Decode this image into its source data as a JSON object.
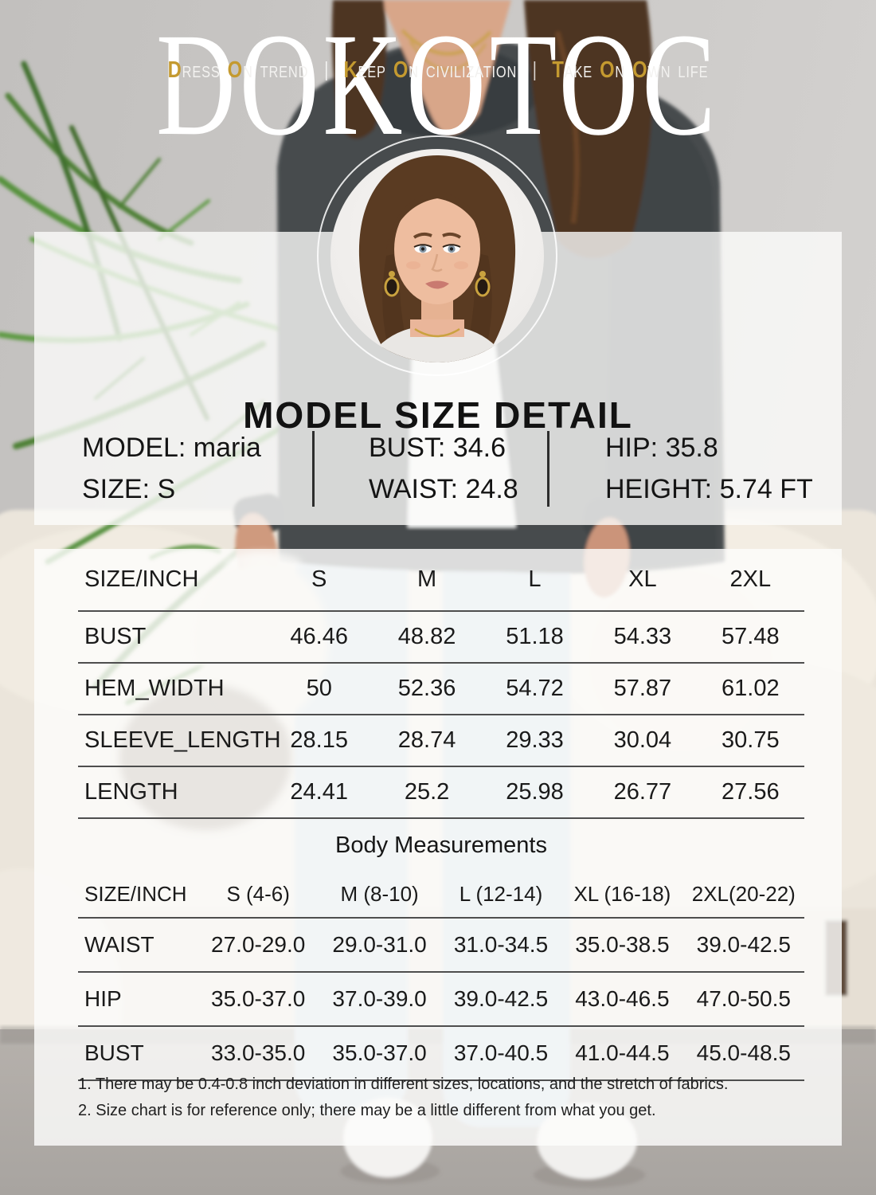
{
  "brand": {
    "logo_text": "DOKOTOC",
    "gold_color": "#c49a30",
    "taglines": [
      {
        "words": [
          {
            "text": "DRESS",
            "gold_initial": true
          },
          {
            "text": "ON",
            "gold_initial": true
          },
          {
            "text": "TREND",
            "gold_initial": false
          }
        ]
      },
      {
        "words": [
          {
            "text": "KEEP",
            "gold_initial": true
          },
          {
            "text": "ON",
            "gold_initial": true
          },
          {
            "text": "CIVILIZATION",
            "gold_initial": false
          }
        ]
      },
      {
        "words": [
          {
            "text": "TAKE",
            "gold_initial": true
          },
          {
            "text": "ON",
            "gold_initial": true
          },
          {
            "text": "OWN",
            "gold_initial": true
          },
          {
            "text": "LIFE",
            "gold_initial": false
          }
        ]
      }
    ]
  },
  "model_info": {
    "title": "MODEL SIZE DETAIL",
    "columns": [
      {
        "rows": [
          "MODEL: maria",
          "SIZE: S"
        ]
      },
      {
        "rows": [
          "BUST: 34.6",
          "WAIST: 24.8"
        ]
      },
      {
        "rows": [
          "HIP: 35.8",
          "HEIGHT: 5.74 FT"
        ]
      }
    ]
  },
  "size_chart": {
    "unit_header": "SIZE/INCH",
    "columns": [
      "S",
      "M",
      "L",
      "XL",
      "2XL"
    ],
    "rows": [
      {
        "label": "BUST",
        "values": [
          "46.46",
          "48.82",
          "51.18",
          "54.33",
          "57.48"
        ]
      },
      {
        "label": "HEM_WIDTH",
        "values": [
          "50",
          "52.36",
          "54.72",
          "57.87",
          "61.02"
        ]
      },
      {
        "label": "SLEEVE_LENGTH",
        "values": [
          "28.15",
          "28.74",
          "29.33",
          "30.04",
          "30.75"
        ]
      },
      {
        "label": "LENGTH",
        "values": [
          "24.41",
          "25.2",
          "25.98",
          "26.77",
          "27.56"
        ]
      }
    ]
  },
  "body_measurements": {
    "title": "Body Measurements",
    "unit_header": "SIZE/INCH",
    "columns": [
      "S (4-6)",
      "M (8-10)",
      "L (12-14)",
      "XL (16-18)",
      "2XL(20-22)"
    ],
    "rows": [
      {
        "label": "WAIST",
        "values": [
          "27.0-29.0",
          "29.0-31.0",
          "31.0-34.5",
          "35.0-38.5",
          "39.0-42.5"
        ]
      },
      {
        "label": "HIP",
        "values": [
          "35.0-37.0",
          "37.0-39.0",
          "39.0-42.5",
          "43.0-46.5",
          "47.0-50.5"
        ]
      },
      {
        "label": "BUST",
        "values": [
          "33.0-35.0",
          "35.0-37.0",
          "37.0-40.5",
          "41.0-44.5",
          "45.0-48.5"
        ]
      }
    ]
  },
  "notes": [
    "1. There may be 0.4-0.8 inch deviation in different sizes, locations, and the stretch of fabrics.",
    "2. Size chart is for reference only; there may be a little different from what you get."
  ]
}
